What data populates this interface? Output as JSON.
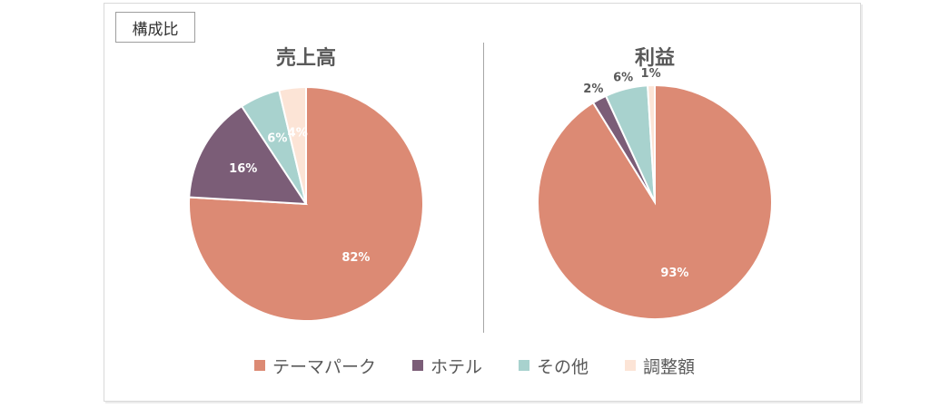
{
  "tag_label": "構成比",
  "legend": [
    {
      "label": "テーマパーク",
      "color": "#DC8A74"
    },
    {
      "label": "ホテル",
      "color": "#7B5D77"
    },
    {
      "label": "その他",
      "color": "#A8D2CE"
    },
    {
      "label": "調整額",
      "color": "#FCE4D6"
    }
  ],
  "chart_data": [
    {
      "type": "pie",
      "title": "売上高",
      "categories": [
        "テーマパーク",
        "ホテル",
        "その他",
        "調整額"
      ],
      "values": [
        82,
        16,
        6,
        4
      ],
      "labels": [
        "82%",
        "16%",
        "6%",
        "4%"
      ]
    },
    {
      "type": "pie",
      "title": "利益",
      "categories": [
        "テーマパーク",
        "ホテル",
        "その他",
        "調整額"
      ],
      "values": [
        93,
        2,
        6,
        1
      ],
      "labels": [
        "93%",
        "2%",
        "6%",
        "1%"
      ]
    }
  ]
}
